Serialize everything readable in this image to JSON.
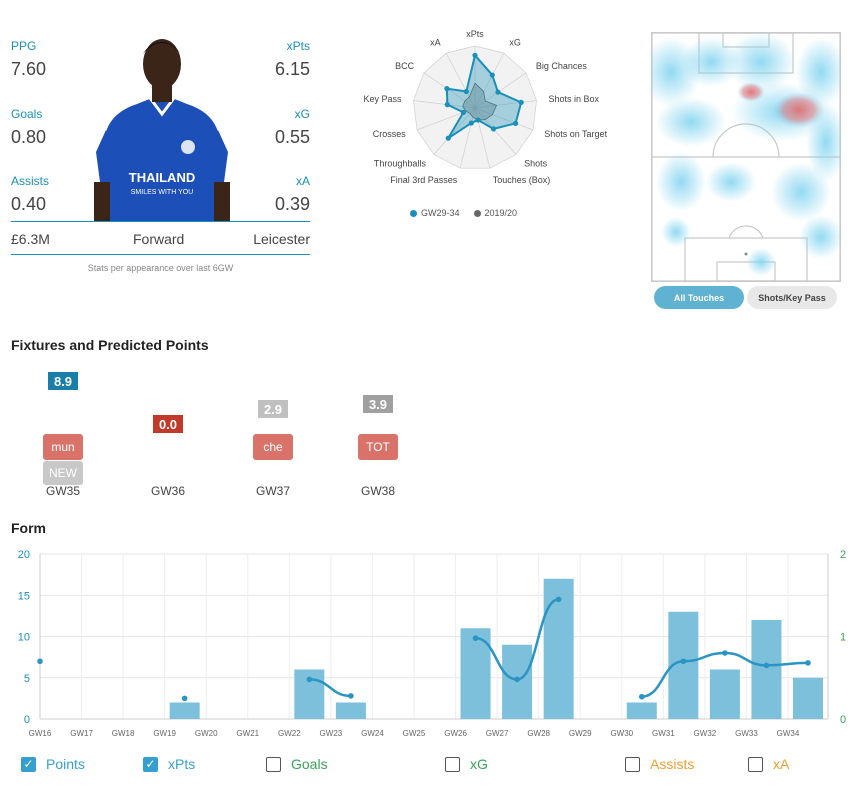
{
  "stats": {
    "ppg": {
      "label": "PPG",
      "value": "7.60"
    },
    "goals": {
      "label": "Goals",
      "value": "0.80"
    },
    "assists": {
      "label": "Assists",
      "value": "0.40"
    },
    "xpts": {
      "label": "xPts",
      "value": "6.15"
    },
    "xg": {
      "label": "xG",
      "value": "0.55"
    },
    "xa": {
      "label": "xA",
      "value": "0.39"
    }
  },
  "player": {
    "price": "£6.3M",
    "position": "Forward",
    "team": "Leicester",
    "shirt_sponsor_line1": "THAILAND",
    "shirt_sponsor_line2": "SMILES WITH YOU"
  },
  "footnote": "Stats per appearance over last 6GW",
  "radar": {
    "axes": [
      "xPts",
      "xG",
      "Big Chances",
      "Shots in Box",
      "Shots on Target",
      "Shots",
      "Touches (Box)",
      "Final 3rd Passes",
      "Throughballs",
      "Crosses",
      "Key Pass",
      "BCC",
      "xA"
    ],
    "series": [
      {
        "name": "GW29-34",
        "color": "#1a8fb8",
        "values": [
          0.85,
          0.6,
          0.45,
          0.75,
          0.7,
          0.45,
          0.2,
          0.25,
          0.65,
          0.2,
          0.45,
          0.55,
          0.3
        ]
      },
      {
        "name": "2019/20",
        "color": "#666666",
        "values": [
          0.4,
          0.3,
          0.2,
          0.35,
          0.3,
          0.25,
          0.2,
          0.15,
          0.12,
          0.15,
          0.2,
          0.2,
          0.2
        ]
      }
    ]
  },
  "heatmap": {
    "buttons": {
      "all": "All Touches",
      "shots": "Shots/Key Pass"
    }
  },
  "fixtures": {
    "title": "Fixtures and Predicted Points",
    "items": [
      {
        "gw": "GW35",
        "pred": "8.9",
        "pred_color": "#1a7fa8",
        "opponents": [
          "mun",
          "NEW"
        ]
      },
      {
        "gw": "GW36",
        "pred": "0.0",
        "pred_color": "#c0392b",
        "opponents": []
      },
      {
        "gw": "GW37",
        "pred": "2.9",
        "pred_color": "#c0c0c0",
        "opponents": [
          "che"
        ]
      },
      {
        "gw": "GW38",
        "pred": "3.9",
        "pred_color": "#a0a0a0",
        "opponents": [
          "TOT"
        ]
      }
    ]
  },
  "form": {
    "title": "Form",
    "legend": [
      {
        "label": "Points",
        "checked": true,
        "color": "#35a0cf"
      },
      {
        "label": "xPts",
        "checked": true,
        "color": "#35a0cf"
      },
      {
        "label": "Goals",
        "checked": false,
        "color": "#3aa35a"
      },
      {
        "label": "xG",
        "checked": false,
        "color": "#3aa35a"
      },
      {
        "label": "Assists",
        "checked": false,
        "color": "#f0a030"
      },
      {
        "label": "xA",
        "checked": false,
        "color": "#f0a030"
      }
    ]
  },
  "chart_data": {
    "type": "bar",
    "categories": [
      "GW16",
      "GW17",
      "GW18",
      "GW19",
      "GW20",
      "GW21",
      "GW22",
      "GW23",
      "GW24",
      "GW25",
      "GW26",
      "GW27",
      "GW28",
      "GW29",
      "GW30",
      "GW31",
      "GW32",
      "GW33",
      "GW34"
    ],
    "series": [
      {
        "name": "Points",
        "type": "bar",
        "values": [
          0,
          0,
          0,
          2,
          0,
          0,
          6,
          2,
          0,
          0,
          11,
          9,
          17,
          0,
          2,
          13,
          6,
          12,
          5
        ]
      },
      {
        "name": "xPts",
        "type": "line",
        "values": [
          7,
          null,
          null,
          2.5,
          null,
          null,
          4.8,
          2.8,
          null,
          null,
          9.8,
          4.8,
          14.5,
          null,
          2.7,
          7,
          8,
          6.5,
          6.8
        ]
      }
    ],
    "ylim": [
      0,
      20
    ],
    "yticks": [
      0,
      5,
      10,
      15,
      20
    ],
    "y2lim": [
      0,
      2
    ],
    "y2ticks": [
      0,
      1,
      2
    ],
    "grid": true
  }
}
